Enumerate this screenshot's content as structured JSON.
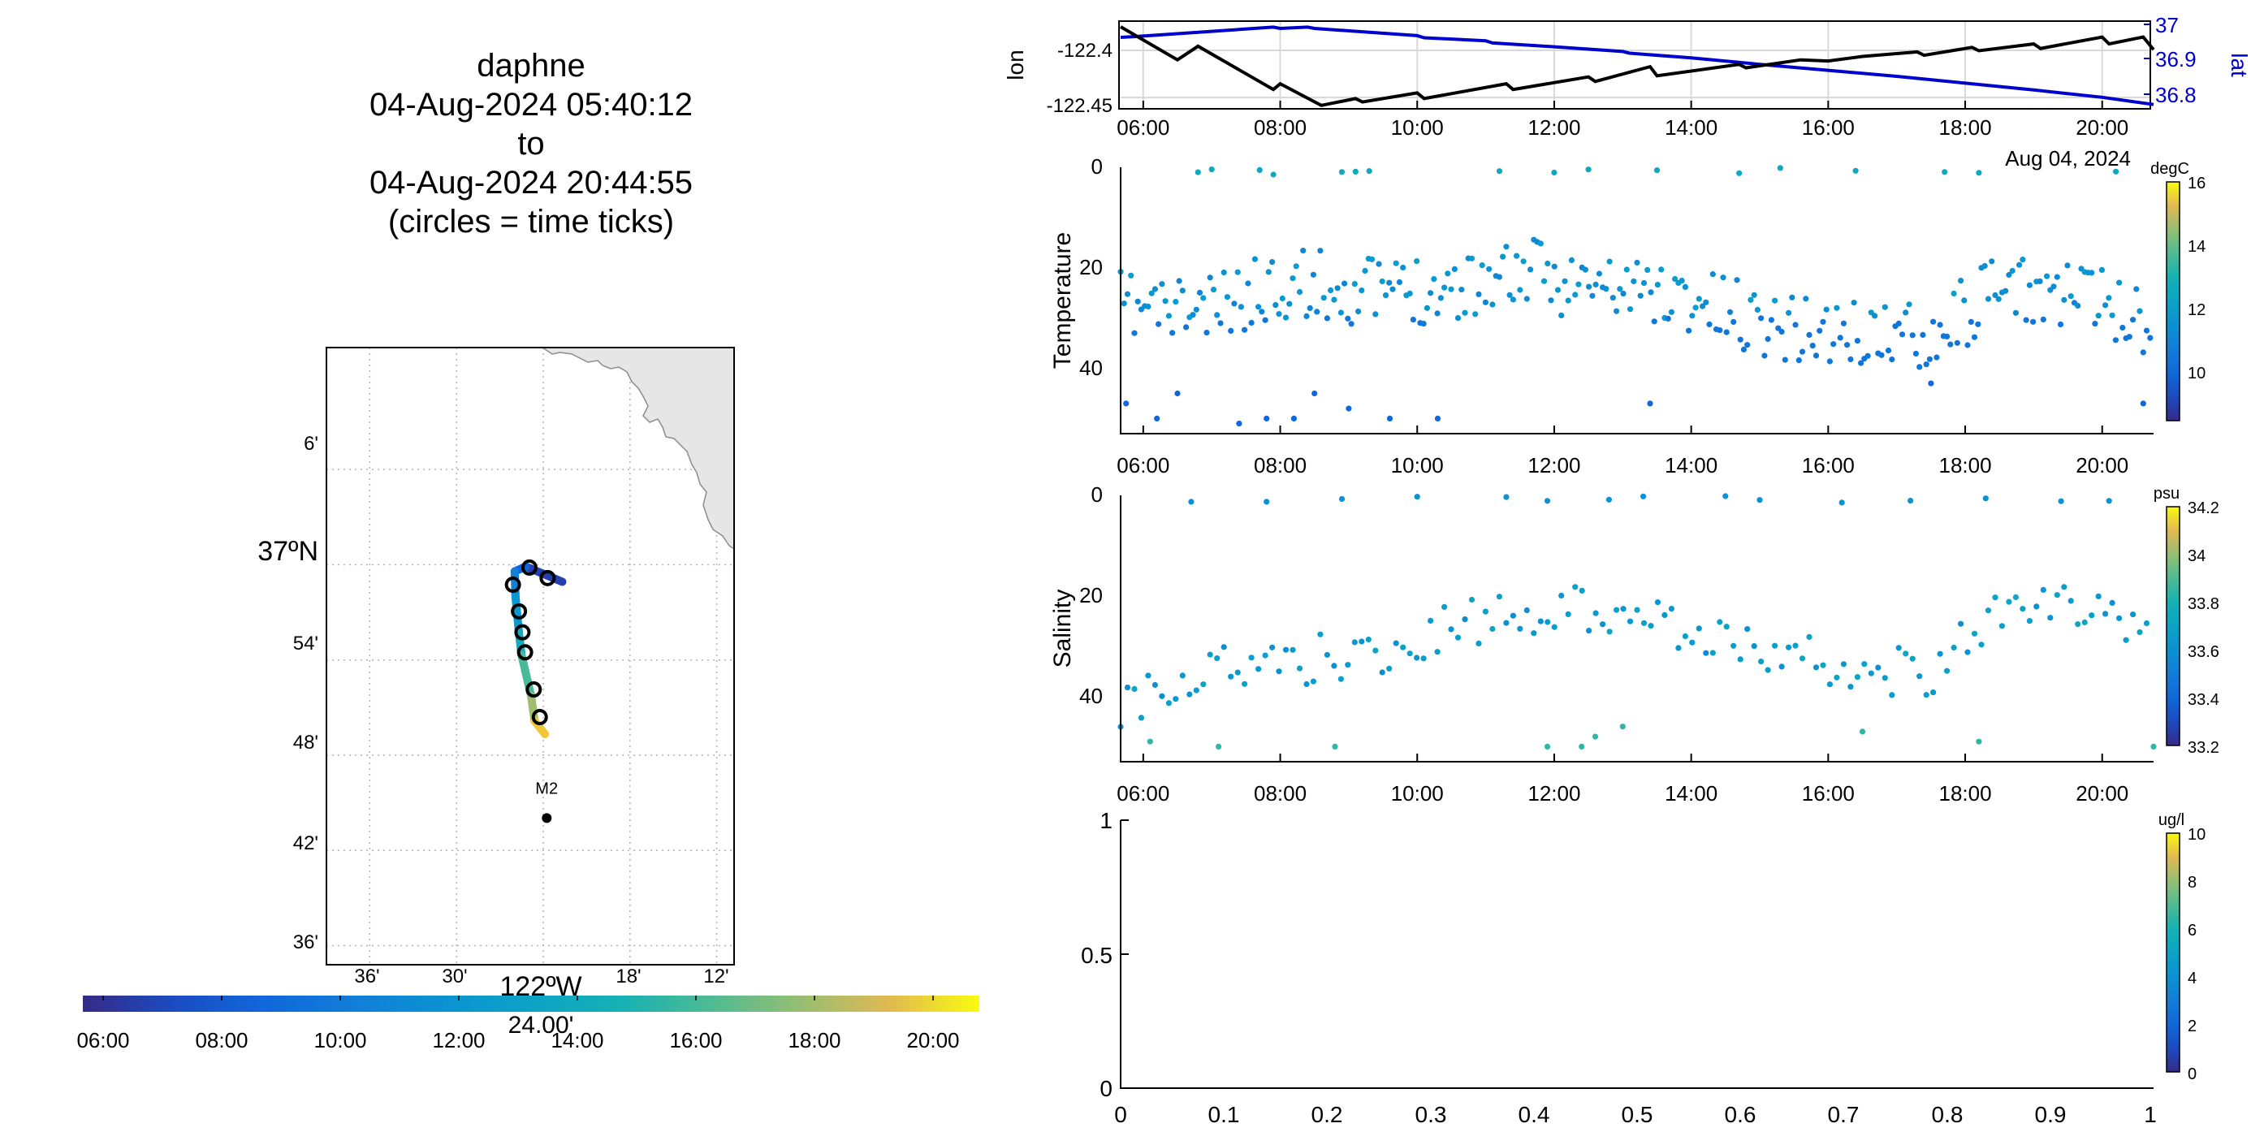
{
  "map": {
    "title_lines": [
      "daphne",
      "04-Aug-2024 05:40:12",
      "to",
      "04-Aug-2024 20:44:55",
      "(circles = time ticks)"
    ],
    "lat_ticks": [
      "6'",
      "37ºN",
      "54'",
      "48'",
      "42'",
      "36'"
    ],
    "lon_ticks": [
      "36'",
      "30'",
      "24.00'",
      "18'",
      "12'"
    ],
    "lon_main_label": "122ºW",
    "station_label": "M2",
    "track_colorbar_ticks": [
      "06:00",
      "08:00",
      "10:00",
      "12:00",
      "14:00",
      "16:00",
      "18:00",
      "20:00"
    ]
  },
  "time_axis": {
    "ticks": [
      "06:00",
      "08:00",
      "10:00",
      "12:00",
      "14:00",
      "16:00",
      "18:00",
      "20:00"
    ],
    "date_label": "Aug 04, 2024"
  },
  "panels": {
    "lonlat": {
      "left_label": "lon",
      "right_label": "lat",
      "left_ticks": [
        "-122.4",
        "-122.45"
      ],
      "right_ticks": [
        "37",
        "36.9",
        "36.8"
      ]
    },
    "temperature": {
      "ylabel": "Temperature",
      "y_ticks": [
        "0",
        "20",
        "40"
      ],
      "cbar_unit": "degC",
      "cbar_ticks": [
        "16",
        "14",
        "12",
        "10"
      ]
    },
    "salinity": {
      "ylabel": "Salinity",
      "y_ticks": [
        "0",
        "20",
        "40"
      ],
      "cbar_unit": "psu",
      "cbar_ticks": [
        "34.2",
        "34",
        "33.8",
        "33.6",
        "33.4",
        "33.2"
      ]
    },
    "chlorophyll": {
      "y_ticks": [
        "1",
        "0.5",
        "0"
      ],
      "x_ticks": [
        "0",
        "0.1",
        "0.2",
        "0.3",
        "0.4",
        "0.5",
        "0.6",
        "0.7",
        "0.8",
        "0.9",
        "1"
      ],
      "cbar_unit": "ug/l",
      "cbar_ticks": [
        "10",
        "8",
        "6",
        "4",
        "2",
        "0"
      ]
    }
  },
  "colors": {
    "lon_line": "#000000",
    "lat_line": "#0000cc",
    "land": "#e6e6e6"
  },
  "chart_data": [
    {
      "type": "line",
      "x_unit": "hours (time of day, 04-Aug-2024)",
      "xlim": [
        5.67,
        20.75
      ],
      "series": [
        {
          "name": "lon",
          "axis": "left",
          "x": [
            5.67,
            6.5,
            6.8,
            7.9,
            8.0,
            8.6,
            9.1,
            9.2,
            10.0,
            10.1,
            11.3,
            11.4,
            12.5,
            12.6,
            13.4,
            13.5,
            14.7,
            14.8,
            15.6,
            16.0,
            16.5,
            17.3,
            17.4,
            18.1,
            18.2,
            19.0,
            19.1,
            20.0,
            20.1,
            20.6,
            20.75
          ],
          "y": [
            -122.383,
            -122.412,
            -122.4,
            -122.438,
            -122.433,
            -122.452,
            -122.446,
            -122.449,
            -122.441,
            -122.446,
            -122.433,
            -122.438,
            -122.427,
            -122.431,
            -122.418,
            -122.426,
            -122.416,
            -122.419,
            -122.412,
            -122.413,
            -122.409,
            -122.405,
            -122.408,
            -122.401,
            -122.404,
            -122.398,
            -122.402,
            -122.392,
            -122.398,
            -122.392,
            -122.403
          ]
        },
        {
          "name": "lat",
          "axis": "right",
          "x": [
            5.67,
            6.0,
            7.9,
            8.0,
            8.4,
            8.5,
            10.0,
            10.1,
            11.0,
            11.1,
            12.0,
            13.0,
            13.1,
            14.0,
            15.0,
            16.0,
            17.0,
            18.0,
            19.0,
            20.0,
            20.75
          ],
          "y": [
            36.962,
            36.965,
            36.986,
            36.983,
            36.986,
            36.983,
            36.966,
            36.961,
            36.954,
            36.949,
            36.94,
            36.929,
            36.925,
            36.914,
            36.899,
            36.885,
            36.871,
            36.855,
            36.839,
            36.822,
            36.805
          ]
        }
      ],
      "y_left_label": "lon",
      "y_left_ticks": [
        -122.45,
        -122.4
      ],
      "y_left_lim": [
        -122.455,
        -122.378
      ],
      "y_right_label": "lat",
      "y_right_ticks": [
        36.8,
        36.9,
        37
      ],
      "y_right_lim": [
        36.795,
        37.0
      ]
    },
    {
      "type": "scatter",
      "ylabel": "Temperature",
      "y_reversed": true,
      "ylim": [
        0,
        53
      ],
      "xlim": [
        5.67,
        20.75
      ],
      "color_unit": "degC",
      "clim": [
        8.5,
        16
      ],
      "pattern": {
        "shallow_band_depth": [
          [
            5.67,
            25
          ],
          [
            7.0,
            26
          ],
          [
            8.0,
            20
          ],
          [
            9.5,
            22
          ],
          [
            10.5,
            21
          ],
          [
            11.5,
            18
          ],
          [
            12.5,
            21
          ],
          [
            13.5,
            22
          ],
          [
            14.5,
            26
          ],
          [
            15.5,
            29
          ],
          [
            16.5,
            31
          ],
          [
            17.5,
            30
          ],
          [
            18.5,
            22
          ],
          [
            19.5,
            22
          ],
          [
            20.75,
            28
          ]
        ],
        "surface_points_hours": [
          6.8,
          7.0,
          7.7,
          7.9,
          8.9,
          9.1,
          9.3,
          11.2,
          12.0,
          12.5,
          13.5,
          14.7,
          15.3,
          16.4,
          17.7,
          18.2,
          20.2
        ],
        "deep_points": [
          [
            5.75,
            47
          ],
          [
            6.2,
            50
          ],
          [
            6.5,
            45
          ],
          [
            7.4,
            51
          ],
          [
            7.8,
            50
          ],
          [
            8.2,
            50
          ],
          [
            8.5,
            45
          ],
          [
            9.0,
            48
          ],
          [
            9.6,
            50
          ],
          [
            10.3,
            50
          ],
          [
            13.4,
            47
          ],
          [
            17.5,
            43
          ],
          [
            20.6,
            47
          ]
        ],
        "band_temperature_degC": 11.5,
        "surface_temperature_degC": 12.5,
        "deep_temperature_degC": 10.0
      }
    },
    {
      "type": "scatter",
      "ylabel": "Salinity",
      "y_reversed": true,
      "ylim": [
        0,
        53
      ],
      "xlim": [
        5.67,
        20.75
      ],
      "color_unit": "psu",
      "clim": [
        33.2,
        34.2
      ],
      "pattern": {
        "band_depth": [
          [
            5.67,
            40
          ],
          [
            7.0,
            33
          ],
          [
            8.0,
            31
          ],
          [
            9.5,
            30
          ],
          [
            10.5,
            24
          ],
          [
            11.5,
            22
          ],
          [
            12.5,
            20
          ],
          [
            13.5,
            22
          ],
          [
            14.5,
            27
          ],
          [
            15.5,
            30
          ],
          [
            16.5,
            33
          ],
          [
            17.5,
            33
          ],
          [
            18.5,
            22
          ],
          [
            19.5,
            20
          ],
          [
            20.75,
            25
          ]
        ],
        "surface_points_hours": [
          6.7,
          7.8,
          8.9,
          10.0,
          11.3,
          11.9,
          12.8,
          13.3,
          14.5,
          15.0,
          16.2,
          17.2,
          18.3,
          19.4,
          20.1
        ],
        "deep_points": [
          [
            6.1,
            49
          ],
          [
            7.1,
            50
          ],
          [
            8.8,
            50
          ],
          [
            11.9,
            50
          ],
          [
            12.4,
            50
          ],
          [
            12.6,
            48
          ],
          [
            13.0,
            46
          ],
          [
            16.5,
            47
          ],
          [
            18.2,
            49
          ],
          [
            20.75,
            50
          ]
        ],
        "band_salinity_psu": 33.65,
        "surface_salinity_psu": 33.6,
        "deep_salinity_psu": 33.85
      }
    },
    {
      "type": "scatter",
      "ylabel": "",
      "xlim": [
        0,
        1
      ],
      "ylim": [
        0,
        1
      ],
      "color_unit": "ug/l",
      "clim": [
        0,
        10
      ],
      "points": []
    },
    {
      "type": "line",
      "name": "vehicle track map",
      "x_unit": "longitude (deg)",
      "y_unit": "latitude (deg)",
      "xlim": [
        -122.65,
        -122.18
      ],
      "ylim": [
        36.58,
        37.228
      ],
      "track": [
        [
          -122.378,
          36.982
        ],
        [
          -122.42,
          36.998
        ],
        [
          -122.433,
          36.993
        ],
        [
          -122.432,
          36.966
        ],
        [
          -122.428,
          36.928
        ],
        [
          -122.425,
          36.905
        ],
        [
          -122.414,
          36.862
        ],
        [
          -122.41,
          36.836
        ],
        [
          -122.398,
          36.822
        ]
      ],
      "time_tick_circles": [
        [
          -122.416,
          36.997
        ],
        [
          -122.395,
          36.986
        ],
        [
          -122.435,
          36.979
        ],
        [
          -122.428,
          36.951
        ],
        [
          -122.424,
          36.929
        ],
        [
          -122.421,
          36.908
        ],
        [
          -122.411,
          36.869
        ],
        [
          -122.404,
          36.84
        ]
      ],
      "station_m2": [
        -122.396,
        36.734
      ]
    }
  ]
}
